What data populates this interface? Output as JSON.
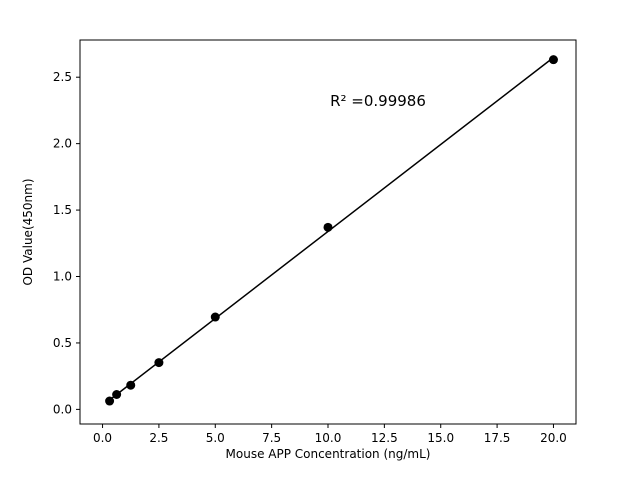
{
  "chart_data": {
    "type": "scatter",
    "title": "",
    "xlabel": "Mouse APP Concentration (ng/mL)",
    "ylabel": "OD Value(450nm)",
    "x": [
      0.3125,
      0.625,
      1.25,
      2.5,
      5,
      10,
      20
    ],
    "y": [
      0.063,
      0.112,
      0.182,
      0.352,
      0.695,
      1.37,
      2.632
    ],
    "fit_line": true,
    "xlim": [
      -1.0,
      21.0
    ],
    "ylim": [
      -0.11,
      2.78
    ],
    "xticks": [
      0.0,
      2.5,
      5.0,
      7.5,
      10.0,
      12.5,
      15.0,
      17.5,
      20.0
    ],
    "xtick_labels": [
      "0.0",
      "2.5",
      "5.0",
      "7.5",
      "10.0",
      "12.5",
      "15.0",
      "17.5",
      "20.0"
    ],
    "yticks": [
      0.0,
      0.5,
      1.0,
      1.5,
      2.0,
      2.5
    ],
    "ytick_labels": [
      "0.0",
      "0.5",
      "1.0",
      "1.5",
      "2.0",
      "2.5"
    ],
    "annotation": {
      "text": "R² =0.99986",
      "fx": 0.6,
      "fy": 0.16
    },
    "grid": false,
    "legend": "none",
    "marker_color": "#000000",
    "line_color": "#000000",
    "frame_color": "#000000",
    "background_color": "#ffffff"
  }
}
